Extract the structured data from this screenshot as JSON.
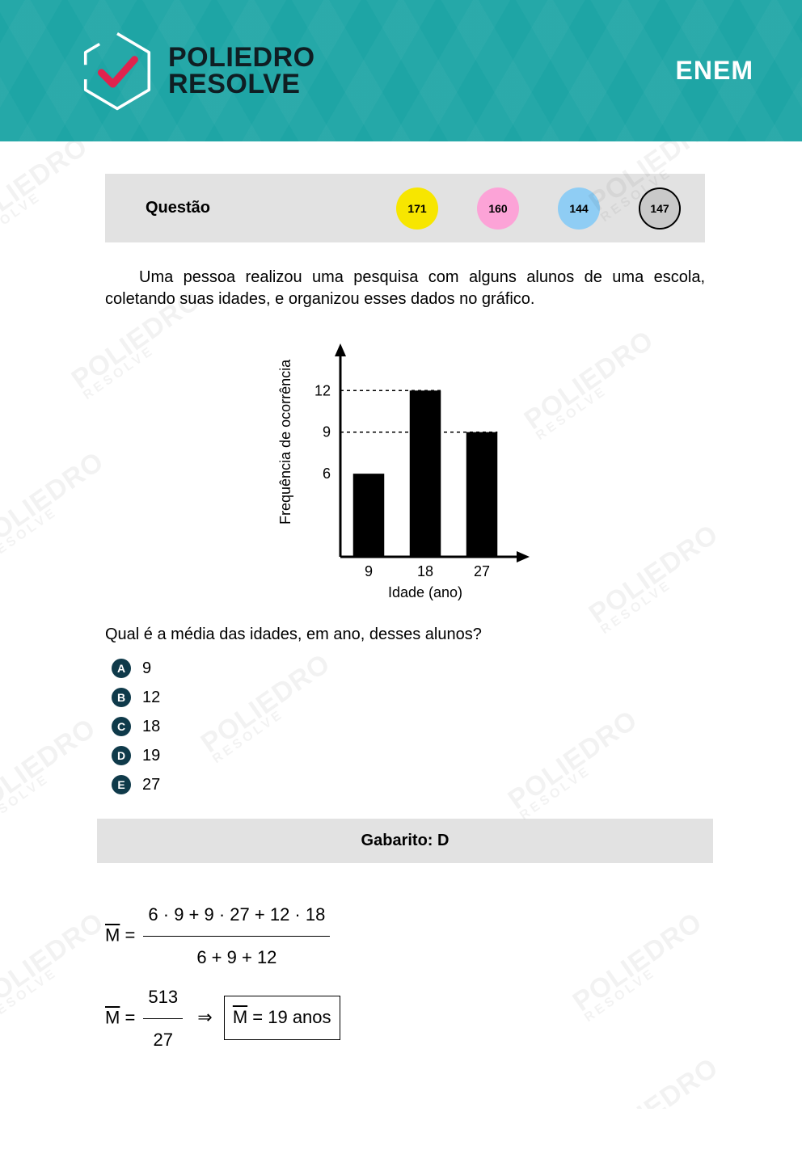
{
  "header": {
    "brand_line1": "POLIEDRO",
    "brand_line2": "RESOLVE",
    "exam": "ENEM",
    "logo": {
      "stroke": "#ffffff",
      "check": "#e0234e"
    }
  },
  "qbar": {
    "label": "Questão",
    "circles": [
      {
        "value": "171",
        "bg": "#f7e600",
        "border": "none",
        "fg": "#000000"
      },
      {
        "value": "160",
        "bg": "#fca3d7",
        "border": "none",
        "fg": "#000000"
      },
      {
        "value": "144",
        "bg": "#8fcdf4",
        "border": "none",
        "fg": "#000000"
      },
      {
        "value": "147",
        "bg": "#c9c9c9",
        "border": "#000000",
        "fg": "#000000"
      }
    ]
  },
  "stem": "Uma pessoa realizou uma pesquisa com alguns alunos de uma escola, coletando suas idades, e organizou esses dados no gráfico.",
  "chart": {
    "type": "bar",
    "ylabel": "Frequência de ocorrência",
    "xlabel": "Idade (ano)",
    "categories": [
      "9",
      "18",
      "27"
    ],
    "values": [
      6,
      12,
      9
    ],
    "yticks": [
      6,
      9,
      12
    ],
    "ylim": [
      0,
      14
    ],
    "bar_color": "#000000",
    "axis_color": "#000000",
    "grid_dash": "4,4",
    "label_fontsize": 18,
    "tick_fontsize": 18,
    "bar_width": 0.55
  },
  "question": "Qual é a média das idades, em ano, desses alunos?",
  "options": [
    {
      "letter": "A",
      "text": "9"
    },
    {
      "letter": "B",
      "text": "12"
    },
    {
      "letter": "C",
      "text": "18"
    },
    {
      "letter": "D",
      "text": "19"
    },
    {
      "letter": "E",
      "text": "27"
    }
  ],
  "answer": {
    "label": "Gabarito: D"
  },
  "solution": {
    "sym": "M",
    "line1_num": "6 · 9 + 9 · 27 + 12 · 18",
    "line1_den": "6 + 9 + 12",
    "line2_num": "513",
    "line2_den": "27",
    "result": "M = 19 anos"
  },
  "colors": {
    "header_bg": "#1ea5a5",
    "bar_bg": "#e2e2e2",
    "text": "#000000",
    "option_bullet_bg": "#0f3a4a"
  }
}
